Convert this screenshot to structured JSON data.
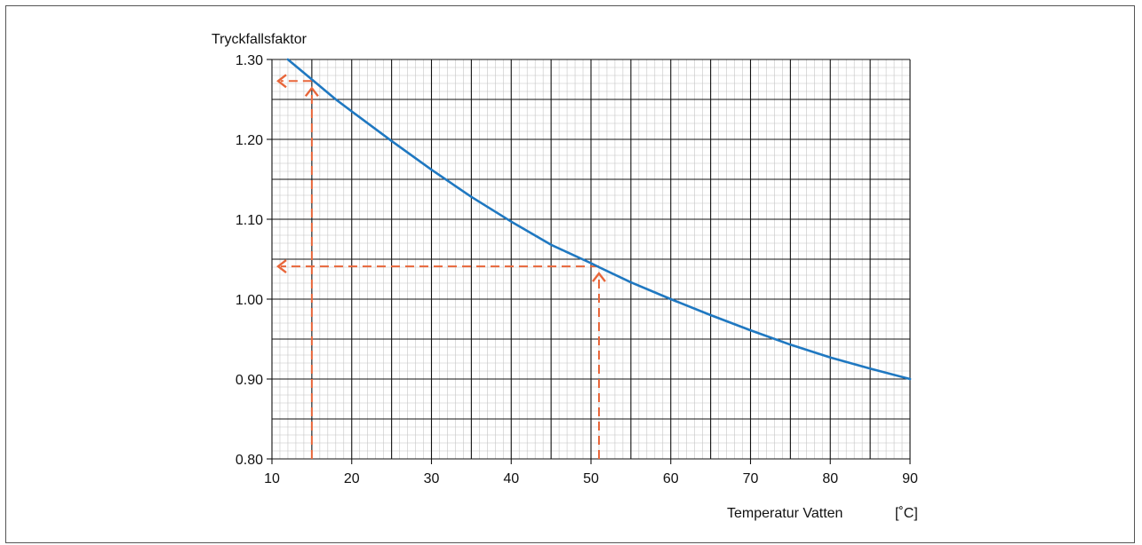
{
  "chart_data": {
    "type": "line",
    "title": "",
    "ylabel": "Tryckfallsfaktor",
    "xlabel": "Temperatur Vatten",
    "xunit": "[˚C]",
    "xlim": [
      10,
      90
    ],
    "ylim": [
      0.8,
      1.3
    ],
    "x_ticks": [
      10,
      20,
      30,
      40,
      50,
      60,
      70,
      80,
      90
    ],
    "y_ticks": [
      0.8,
      0.9,
      1.0,
      1.1,
      1.2,
      1.3
    ],
    "x_tick_labels": [
      "10",
      "20",
      "30",
      "40",
      "50",
      "60",
      "70",
      "80",
      "90"
    ],
    "y_tick_labels": [
      "0.80",
      "0.90",
      "1.00",
      "1.10",
      "1.20",
      "1.30"
    ],
    "grid": "on",
    "series": [
      {
        "color": "#1f78c1",
        "x": [
          12,
          15,
          18,
          20,
          25,
          30,
          35,
          40,
          45,
          50,
          51,
          55,
          60,
          65,
          70,
          75,
          80,
          85,
          90
        ],
        "y": [
          1.3,
          1.275,
          1.25,
          1.235,
          1.198,
          1.162,
          1.128,
          1.097,
          1.068,
          1.045,
          1.04,
          1.021,
          1.0,
          0.98,
          0.961,
          0.943,
          0.927,
          0.913,
          0.9
        ]
      }
    ],
    "annotations": [
      {
        "type": "reading",
        "x": 15,
        "y": 1.273,
        "color": "#e8663a"
      },
      {
        "type": "reading",
        "x": 51,
        "y": 1.041,
        "color": "#e8663a"
      }
    ]
  }
}
